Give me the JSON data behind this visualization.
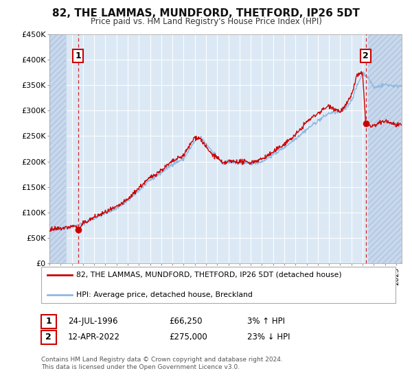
{
  "title": "82, THE LAMMAS, MUNDFORD, THETFORD, IP26 5DT",
  "subtitle": "Price paid vs. HM Land Registry's House Price Index (HPI)",
  "legend_line1": "82, THE LAMMAS, MUNDFORD, THETFORD, IP26 5DT (detached house)",
  "legend_line2": "HPI: Average price, detached house, Breckland",
  "annotation1_label": "1",
  "annotation1_date": "24-JUL-1996",
  "annotation1_price": "£66,250",
  "annotation1_hpi": "3% ↑ HPI",
  "annotation2_label": "2",
  "annotation2_date": "12-APR-2022",
  "annotation2_price": "£275,000",
  "annotation2_hpi": "23% ↓ HPI",
  "footer": "Contains HM Land Registry data © Crown copyright and database right 2024.\nThis data is licensed under the Open Government Licence v3.0.",
  "yticks": [
    0,
    50000,
    100000,
    150000,
    200000,
    250000,
    300000,
    350000,
    400000,
    450000
  ],
  "ytick_labels": [
    "£0",
    "£50K",
    "£100K",
    "£150K",
    "£200K",
    "£250K",
    "£300K",
    "£350K",
    "£400K",
    "£450K"
  ],
  "xmin": 1994.0,
  "xmax": 2025.5,
  "ymin": 0,
  "ymax": 450000,
  "sale1_x": 1996.56,
  "sale1_y": 66250,
  "sale2_x": 2022.28,
  "sale2_y": 275000,
  "hatch_end": 1995.5,
  "hatch_start2": 2022.5,
  "fig_bg": "#ffffff",
  "plot_bg": "#dce9f5",
  "hatch_bg": "#c8d8ec",
  "grid_color": "#ffffff",
  "hpi_color": "#90b8e0",
  "price_color": "#cc0000",
  "sale_dot_color": "#cc0000",
  "vline_color": "#cc0000",
  "annotation_box_color": "#cc0000",
  "legend_border": "#aaaaaa"
}
